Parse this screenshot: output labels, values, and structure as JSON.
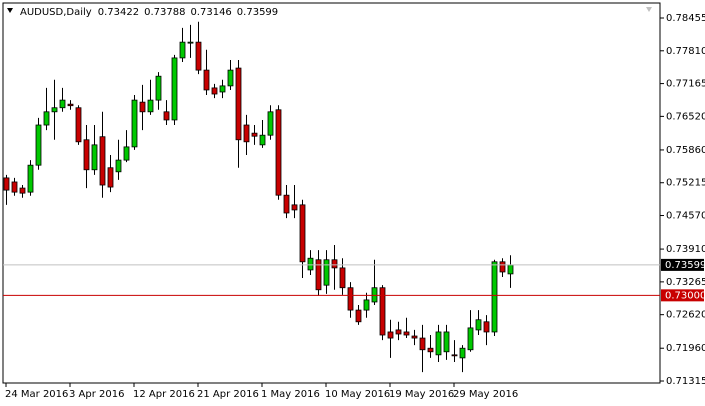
{
  "chart_data": {
    "type": "candlestick",
    "title": "AUDUSD,Daily",
    "categories": [
      "24 Mar 2016",
      null,
      null,
      null,
      null,
      null,
      null,
      null,
      "3 Apr 2016",
      null,
      null,
      null,
      null,
      null,
      null,
      null,
      "12 Apr 2016",
      null,
      null,
      null,
      null,
      null,
      null,
      null,
      "21 Apr 2016",
      null,
      null,
      null,
      null,
      null,
      null,
      null,
      "1 May 2016",
      null,
      null,
      null,
      null,
      null,
      null,
      null,
      "10 May 2016",
      null,
      null,
      null,
      null,
      null,
      null,
      null,
      "19 May 2016",
      null,
      null,
      null,
      null,
      null,
      null,
      null,
      "29 May 2016",
      null,
      null,
      null,
      null,
      null,
      null,
      null
    ],
    "open": [
      0.7531,
      0.7523,
      0.7511,
      0.7503,
      0.7556,
      0.7635,
      0.7661,
      0.7669,
      0.7676,
      0.7669,
      0.7606,
      0.7547,
      0.7612,
      0.7551,
      0.7543,
      0.7566,
      0.7592,
      0.768,
      0.7661,
      0.7684,
      0.7661,
      0.7645,
      0.7767,
      0.7798,
      0.7798,
      0.7743,
      0.7708,
      0.77,
      0.7712,
      0.7747,
      0.7635,
      0.7619,
      0.7596,
      0.7615,
      0.7665,
      0.7497,
      0.7478,
      0.7478,
      0.735,
      0.737,
      0.732,
      0.737,
      0.7354,
      0.7315,
      0.7271,
      0.7271,
      0.7287,
      0.7315,
      0.7228,
      0.7232,
      0.7228,
      0.722,
      0.7216,
      0.7196,
      0.7183,
      0.7189,
      0.7183,
      0.7177,
      0.7193,
      0.7232,
      0.7248,
      0.7228,
      0.7366,
      0.73422
    ],
    "high": [
      0.7537,
      0.7531,
      0.7517,
      0.7566,
      0.7649,
      0.7708,
      0.7724,
      0.7708,
      0.7684,
      0.7674,
      0.7635,
      0.7635,
      0.7661,
      0.7576,
      0.7606,
      0.7625,
      0.7694,
      0.7714,
      0.7724,
      0.7739,
      0.7684,
      0.7773,
      0.7826,
      0.7832,
      0.7838,
      0.7783,
      0.7716,
      0.7724,
      0.7763,
      0.7763,
      0.7655,
      0.7635,
      0.7645,
      0.7674,
      0.7674,
      0.7517,
      0.7517,
      0.7488,
      0.7389,
      0.7389,
      0.7389,
      0.7399,
      0.7373,
      0.7326,
      0.7281,
      0.7305,
      0.737,
      0.732,
      0.7252,
      0.7248,
      0.7256,
      0.7232,
      0.7242,
      0.7222,
      0.7242,
      0.7242,
      0.7212,
      0.7202,
      0.7271,
      0.7271,
      0.7261,
      0.737,
      0.7373,
      0.73788
    ],
    "low": [
      0.7478,
      0.7496,
      0.7492,
      0.7496,
      0.7547,
      0.7625,
      0.7606,
      0.7661,
      0.7665,
      0.7596,
      0.7511,
      0.7537,
      0.7492,
      0.7503,
      0.7527,
      0.7562,
      0.7586,
      0.7625,
      0.7655,
      0.7665,
      0.7635,
      0.7635,
      0.7759,
      0.7767,
      0.7735,
      0.7694,
      0.7688,
      0.7688,
      0.7704,
      0.7551,
      0.7576,
      0.7596,
      0.759,
      0.7606,
      0.7488,
      0.7452,
      0.7452,
      0.7334,
      0.734,
      0.7299,
      0.7303,
      0.7311,
      0.7301,
      0.7256,
      0.7242,
      0.7256,
      0.7281,
      0.7212,
      0.7177,
      0.7212,
      0.7216,
      0.7202,
      0.7149,
      0.7177,
      0.7169,
      0.7173,
      0.7169,
      0.7149,
      0.7189,
      0.7222,
      0.7202,
      0.722,
      0.7336,
      0.73146
    ],
    "close": [
      0.7507,
      0.7503,
      0.7501,
      0.7556,
      0.7635,
      0.7661,
      0.7669,
      0.7684,
      0.7673,
      0.7602,
      0.7547,
      0.7596,
      0.7517,
      0.7513,
      0.7566,
      0.7592,
      0.7684,
      0.7661,
      0.7684,
      0.7731,
      0.7645,
      0.7767,
      0.7798,
      0.7798,
      0.7743,
      0.7704,
      0.7696,
      0.7712,
      0.7743,
      0.7606,
      0.7602,
      0.7613,
      0.7615,
      0.7661,
      0.7497,
      0.7462,
      0.7468,
      0.7366,
      0.7373,
      0.7311,
      0.737,
      0.7354,
      0.7315,
      0.7271,
      0.7248,
      0.7291,
      0.7315,
      0.7222,
      0.7216,
      0.7224,
      0.7222,
      0.7216,
      0.7193,
      0.7189,
      0.7228,
      0.7228,
      0.7181,
      0.7196,
      0.7236,
      0.7252,
      0.7228,
      0.7366,
      0.7346,
      0.73599
    ],
    "up_color": "#00c800",
    "down_color": "#c80000",
    "ylim": [
      0.71276,
      0.7875
    ],
    "yticks": [
      0.78455,
      {
        "value": 0.7781,
        "label": "0.77810"
      },
      0.77165,
      {
        "value": 0.7652,
        "label": "0.76520"
      },
      {
        "value": 0.7586,
        "label": "0.75860"
      },
      0.75215,
      {
        "value": 0.7457,
        "label": "0.74570"
      },
      {
        "value": 0.7391,
        "label": "0.73910"
      },
      0.73265,
      {
        "value": 0.7262,
        "label": "0.72620"
      },
      {
        "value": 0.7196,
        "label": "0.71960"
      },
      0.71315
    ],
    "hline": {
      "value": 0.73,
      "label": "0.73000",
      "color": "#c80000"
    }
  }
}
